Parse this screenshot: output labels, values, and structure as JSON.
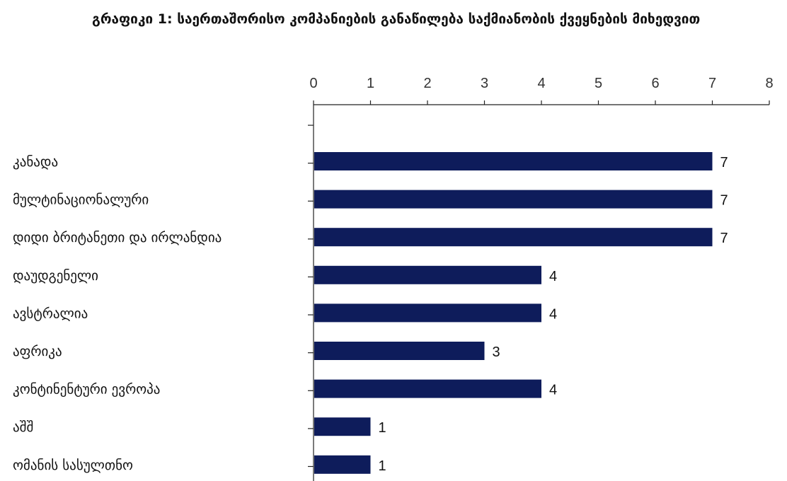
{
  "chart_data": {
    "type": "bar",
    "orientation": "horizontal",
    "title": "გრაფიკი 1: საერთაშორისო კომპანიების განაწილება საქმიანობის ქვეყნების მიხედვით",
    "categories": [
      "კანადა",
      "მულტინაციონალური",
      "დიდი ბრიტანეთი და ირლანდია",
      "დაუდგენელი",
      "ავსტრალია",
      "აფრიკა",
      "კონტინენტური ევროპა",
      "აშშ",
      "ომანის სასულთნო"
    ],
    "values": [
      7,
      7,
      7,
      4,
      4,
      3,
      4,
      1,
      1
    ],
    "xlim": [
      0,
      8
    ],
    "xticks": [
      "0",
      "1",
      "2",
      "3",
      "4",
      "5",
      "6",
      "7",
      "8"
    ],
    "axis_position": "top",
    "grid": false,
    "bar_color": "#0e1c5b"
  }
}
